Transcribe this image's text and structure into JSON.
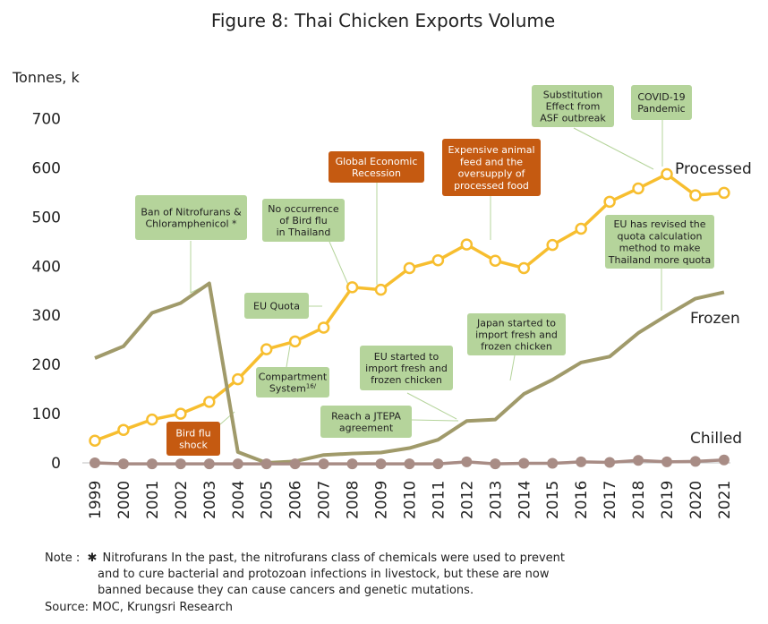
{
  "chart_data": {
    "type": "line",
    "title": "Figure 8: Thai Chicken Exports Volume",
    "ylabel": "Tonnes, k",
    "ylim": [
      0,
      700
    ],
    "yticks": [
      0,
      100,
      200,
      300,
      400,
      500,
      600,
      700
    ],
    "grid": false,
    "x": [
      "1999",
      "2000",
      "2001",
      "2002",
      "2003",
      "2004",
      "2005",
      "2006",
      "2007",
      "2008",
      "2009",
      "2010",
      "2011",
      "2012",
      "2013",
      "2014",
      "2015",
      "2016",
      "2017",
      "2018",
      "2019",
      "2020",
      "2021"
    ],
    "series": [
      {
        "name": "Processed",
        "color": "#F7BE2F",
        "markers": true,
        "values": [
          45,
          67,
          88,
          100,
          124,
          170,
          231,
          247,
          275,
          357,
          352,
          396,
          412,
          444,
          411,
          396,
          443,
          476,
          531,
          558,
          587,
          544,
          549
        ]
      },
      {
        "name": "Frozen",
        "color": "#A09A6A",
        "markers": false,
        "values": [
          213,
          237,
          305,
          325,
          365,
          22,
          0,
          3,
          16,
          19,
          21,
          30,
          47,
          85,
          88,
          140,
          169,
          204,
          216,
          264,
          300,
          334,
          347
        ]
      },
      {
        "name": "Chilled",
        "color": "#A88C85",
        "markers": true,
        "values": [
          0,
          -2,
          -2,
          -2,
          -2,
          -2,
          -2,
          -2,
          -2,
          -2,
          -2,
          -2,
          -2,
          2,
          -2,
          -1,
          -1,
          2,
          1,
          5,
          2,
          3,
          6
        ]
      }
    ],
    "annotations": [
      {
        "id": "nitrofurans",
        "lines": [
          "Ban of Nitrofurans &",
          "Chloramphenicol *"
        ],
        "style": "green"
      },
      {
        "id": "no-bird-flu",
        "lines": [
          "No occurrence",
          "of Bird flu",
          "in Thailand"
        ],
        "style": "green"
      },
      {
        "id": "global-recession",
        "lines": [
          "Global Economic",
          "Recession"
        ],
        "style": "orange"
      },
      {
        "id": "animal-feed",
        "lines": [
          "Expensive animal",
          "feed and the",
          "oversupply of",
          "processed food"
        ],
        "style": "orange"
      },
      {
        "id": "asf",
        "lines": [
          "Substitution",
          "Effect from",
          "ASF outbreak"
        ],
        "style": "green"
      },
      {
        "id": "covid",
        "lines": [
          "COVID-19",
          "Pandemic"
        ],
        "style": "green"
      },
      {
        "id": "eu-quota-method",
        "lines": [
          "EU has revised the",
          "quota calculation",
          "method to make",
          "Thailand more quota"
        ],
        "style": "green"
      },
      {
        "id": "eu-quota",
        "lines": [
          "EU Quota"
        ],
        "style": "green"
      },
      {
        "id": "compartment",
        "lines": [
          "Compartment",
          "System"
        ],
        "sup": "16/",
        "style": "green"
      },
      {
        "id": "bird-flu-shock",
        "lines": [
          "Bird flu",
          "shock"
        ],
        "style": "orange"
      },
      {
        "id": "eu-import",
        "lines": [
          "EU started to",
          "import fresh and",
          "frozen chicken"
        ],
        "style": "green"
      },
      {
        "id": "jtepa",
        "lines": [
          "Reach a JTEPA",
          "agreement"
        ],
        "style": "green"
      },
      {
        "id": "japan-import",
        "lines": [
          "Japan started to",
          "import fresh and",
          "frozen chicken"
        ],
        "style": "green"
      }
    ]
  },
  "colors": {
    "green_box": "#B5D49B",
    "orange_box": "#C55A11",
    "connector": "#B5D49B"
  },
  "notes": {
    "note_prefix": "Note :",
    "note_star": "✱",
    "note_line1": "Nitrofurans In the past, the nitrofurans class of chemicals were used to prevent",
    "note_line2": "and to cure bacterial and protozoan infections in livestock, but these are now",
    "note_line3": "banned because they can cause cancers and genetic mutations.",
    "source": "Source: MOC, Krungsri Research"
  }
}
